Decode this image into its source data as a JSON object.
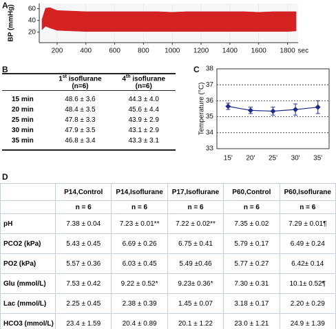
{
  "chart_data": [
    {
      "type": "band",
      "panel": "A",
      "ylabel": "BP (mmHg)",
      "xlabel": "sec",
      "color": "#d42222",
      "x": [
        95,
        120,
        150,
        200,
        300,
        400,
        500,
        600,
        700,
        800,
        900,
        1000,
        1100,
        1200,
        1300,
        1400,
        1500,
        1600,
        1700,
        1800,
        1860
      ],
      "high": [
        42,
        61,
        62,
        57,
        56,
        55,
        55,
        55,
        55,
        55,
        55,
        54,
        55,
        55,
        55,
        55,
        55,
        54,
        55,
        55,
        55
      ],
      "low": [
        24,
        30,
        27,
        23,
        22,
        21,
        21,
        21,
        21,
        21,
        21,
        21,
        21,
        21,
        21,
        21,
        21,
        21,
        21,
        21,
        22
      ],
      "ylim": [
        2,
        69
      ],
      "yticks": [
        20,
        40,
        60
      ],
      "xlim": [
        76,
        1874
      ],
      "xticks": [
        200,
        400,
        600,
        800,
        1000,
        1200,
        1400,
        1600,
        1800
      ]
    },
    {
      "type": "line",
      "panel": "C",
      "ylabel": "Temperature (°C)",
      "color": "#1c2a8c",
      "categories": [
        "15'",
        "20'",
        "25'",
        "30'",
        "35'"
      ],
      "values": [
        35.65,
        35.4,
        35.35,
        35.45,
        35.6
      ],
      "errors": [
        0.2,
        0.2,
        0.25,
        0.35,
        0.4
      ],
      "ylim": [
        33,
        38
      ],
      "yticks": [
        33,
        34,
        35,
        36,
        37,
        38
      ],
      "grid": true
    }
  ],
  "table_b": {
    "panel": "B",
    "header": [
      {
        "num": "1",
        "sup": "st",
        "text": " isoflurane",
        "n": "(n=6)"
      },
      {
        "num": "4",
        "sup": "th",
        "text": " isoflurane",
        "n": "(n=6)"
      }
    ],
    "rows": [
      [
        "15 min",
        "48.6 ± 3.6",
        "44.3 ± 4.0"
      ],
      [
        "20 min",
        "48.4 ± 3.5",
        "45.6 ± 4.4"
      ],
      [
        "25 min",
        "47.8 ± 3.3",
        "43.9 ± 2.9"
      ],
      [
        "30 min",
        "47.9 ± 3.5",
        "43.1 ± 2.9"
      ],
      [
        "35 min",
        "46.8 ± 3.4",
        "43.3 ± 3.1"
      ]
    ]
  },
  "table_d": {
    "panel": "D",
    "columns": [
      "P14,Control",
      "P14,Isoflurane",
      "P17,Isoflurane",
      "P60,Control",
      "P60,Isoflurane"
    ],
    "n_row": [
      "n = 6",
      "n = 6",
      "n = 6",
      "n = 6",
      "n = 6"
    ],
    "rows": [
      {
        "label": "pH",
        "values": [
          "7.38 ± 0.04",
          "7.23 ± 0.01**",
          "7.22 ± 0.02**",
          "7.35 ± 0.02",
          "7.29 ± 0.01¶"
        ]
      },
      {
        "label": "PCO2 (kPa)",
        "values": [
          "5.43 ± 0.45",
          "6.69 ± 0.26",
          "6.75 ± 0.41",
          "5.79 ± 0.17",
          "6.49 ± 0.24"
        ]
      },
      {
        "label": "PO2 (kPa)",
        "values": [
          "5.57 ± 0.36",
          "6.03 ± 0.45",
          "5.49 ±0.46",
          "5.77 ± 0.27",
          "6.42± 0.14"
        ]
      },
      {
        "label": "Glu (mmol/L)",
        "values": [
          "7.53 ± 0.42",
          "9.22 ± 0.52*",
          "9.23± 0.36*",
          "7.30 ± 0.31",
          "10.1± 0.52¶"
        ]
      },
      {
        "label": "Lac (mmol/L)",
        "values": [
          "2.25 ± 0.45",
          "2.38 ± 0.39",
          "1.45 ± 0.07",
          "3.18 ± 0.17",
          "2.20 ± 0.29"
        ]
      },
      {
        "label": "HCO3 (mmol/L)",
        "values": [
          "23.4 ± 1.59",
          "20.4 ± 0.89",
          "20.1 ± 1.22",
          "23.0 ± 1.21",
          "24.9 ± 1.39"
        ]
      }
    ]
  }
}
